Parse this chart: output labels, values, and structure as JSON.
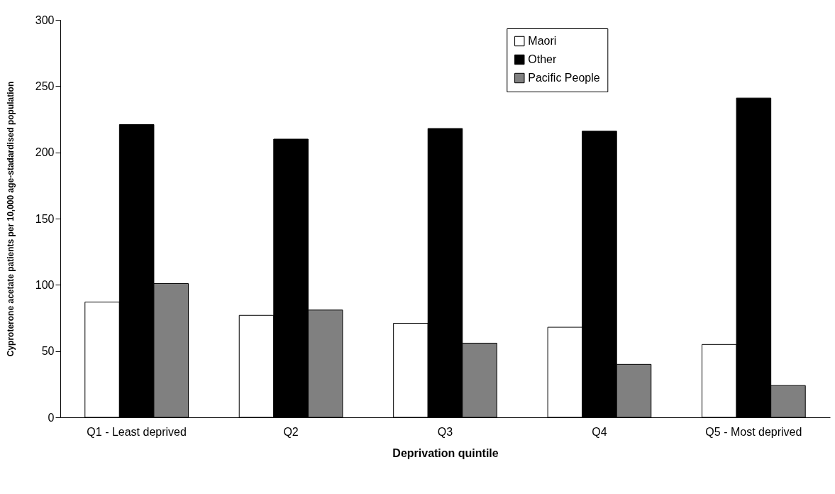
{
  "chart_data": {
    "type": "bar",
    "xlabel": "Deprivation quintile",
    "ylabel": "Cyproterone acetate patients per 10,000 age-stadardised population",
    "categories": [
      "Q1 - Least deprived",
      "Q2",
      "Q3",
      "Q4",
      "Q5 - Most deprived"
    ],
    "series": [
      {
        "name": "Maori",
        "color": "#ffffff",
        "values": [
          87,
          77,
          71,
          68,
          55
        ]
      },
      {
        "name": "Other",
        "color": "#000000",
        "values": [
          221,
          210,
          218,
          216,
          241
        ]
      },
      {
        "name": "Pacific People",
        "color": "#808080",
        "values": [
          101,
          81,
          56,
          40,
          24
        ]
      }
    ],
    "ylim": [
      0,
      300
    ],
    "yticks": [
      0,
      50,
      100,
      150,
      200,
      250,
      300
    ],
    "grid": false,
    "legend": "top"
  }
}
